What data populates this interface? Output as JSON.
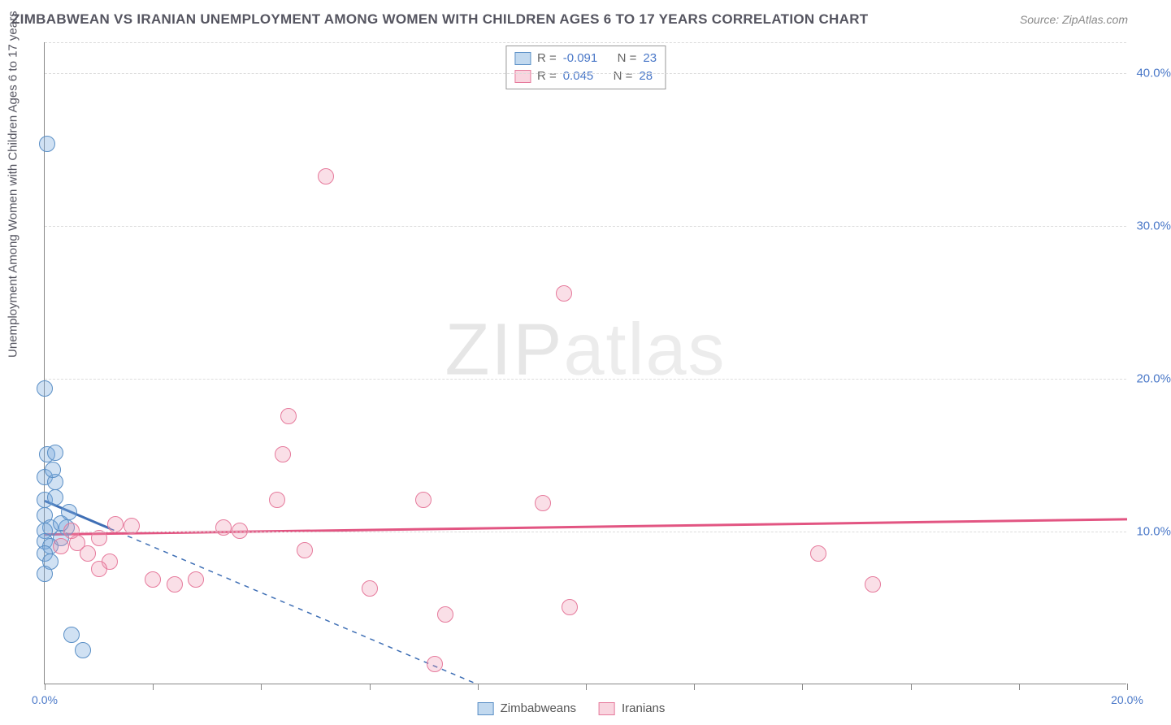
{
  "title": "ZIMBABWEAN VS IRANIAN UNEMPLOYMENT AMONG WOMEN WITH CHILDREN AGES 6 TO 17 YEARS CORRELATION CHART",
  "source": "Source: ZipAtlas.com",
  "ylabel": "Unemployment Among Women with Children Ages 6 to 17 years",
  "watermark_a": "ZIP",
  "watermark_b": "atlas",
  "chart": {
    "type": "scatter",
    "xlim": [
      0,
      20
    ],
    "ylim": [
      0,
      42
    ],
    "xtick_positions": [
      0,
      2,
      4,
      6,
      8,
      10,
      12,
      14,
      16,
      18,
      20
    ],
    "xtick_labels": {
      "0": "0.0%",
      "20": "20.0%"
    },
    "ytick_positions": [
      10,
      20,
      30,
      40
    ],
    "ytick_labels": [
      "10.0%",
      "20.0%",
      "30.0%",
      "40.0%"
    ],
    "grid_color": "#dcdcdc",
    "axis_color": "#888888",
    "background_color": "#ffffff",
    "title_fontsize": 17,
    "label_fontsize": 15,
    "tick_fontsize": 14,
    "tick_color": "#4a78c8",
    "marker_size": 20,
    "series": [
      {
        "name": "Zimbabweans",
        "color_fill": "rgba(120,170,220,0.35)",
        "color_stroke": "#5a8fc6",
        "trend_color": "#3f6fb5",
        "trend_dash_ext": true,
        "R": "-0.091",
        "N": "23",
        "trend": {
          "x1": 0,
          "y1": 12.0,
          "x2": 1.2,
          "y2": 10.2,
          "ext_x2": 8.0,
          "ext_y2": 0
        },
        "points": [
          [
            0.05,
            35.3
          ],
          [
            0.0,
            19.3
          ],
          [
            0.05,
            15.0
          ],
          [
            0.2,
            15.1
          ],
          [
            0.0,
            13.5
          ],
          [
            0.2,
            13.2
          ],
          [
            0.0,
            12.0
          ],
          [
            0.2,
            12.2
          ],
          [
            0.0,
            11.0
          ],
          [
            0.1,
            10.2
          ],
          [
            0.0,
            10.0
          ],
          [
            0.4,
            10.2
          ],
          [
            0.0,
            9.3
          ],
          [
            0.1,
            9.0
          ],
          [
            0.0,
            8.5
          ],
          [
            0.1,
            8.0
          ],
          [
            0.0,
            7.2
          ],
          [
            0.5,
            3.2
          ],
          [
            0.7,
            2.2
          ],
          [
            0.3,
            10.5
          ],
          [
            0.45,
            11.2
          ],
          [
            0.3,
            9.5
          ],
          [
            0.15,
            14.0
          ]
        ]
      },
      {
        "name": "Iranians",
        "color_fill": "rgba(240,150,175,0.30)",
        "color_stroke": "#e67a9c",
        "trend_color": "#e25582",
        "trend_dash_ext": false,
        "R": "0.045",
        "N": "28",
        "trend": {
          "x1": 0,
          "y1": 9.8,
          "x2": 20,
          "y2": 10.8
        },
        "points": [
          [
            5.2,
            33.2
          ],
          [
            9.6,
            25.5
          ],
          [
            4.5,
            17.5
          ],
          [
            4.4,
            15.0
          ],
          [
            4.3,
            12.0
          ],
          [
            7.0,
            12.0
          ],
          [
            9.2,
            11.8
          ],
          [
            3.3,
            10.2
          ],
          [
            3.6,
            10.0
          ],
          [
            1.3,
            10.4
          ],
          [
            1.6,
            10.3
          ],
          [
            1.0,
            9.5
          ],
          [
            0.6,
            9.2
          ],
          [
            0.8,
            8.5
          ],
          [
            0.3,
            9.0
          ],
          [
            1.2,
            8.0
          ],
          [
            1.0,
            7.5
          ],
          [
            2.0,
            6.8
          ],
          [
            2.4,
            6.5
          ],
          [
            2.8,
            6.8
          ],
          [
            4.8,
            8.7
          ],
          [
            6.0,
            6.2
          ],
          [
            7.4,
            4.5
          ],
          [
            7.2,
            1.3
          ],
          [
            9.7,
            5.0
          ],
          [
            14.3,
            8.5
          ],
          [
            15.3,
            6.5
          ],
          [
            0.5,
            10.0
          ]
        ]
      }
    ]
  },
  "legend": {
    "series1_label": "Zimbabweans",
    "series2_label": "Iranians"
  },
  "stat_legend": {
    "r_label": "R =",
    "n_label": "N ="
  }
}
